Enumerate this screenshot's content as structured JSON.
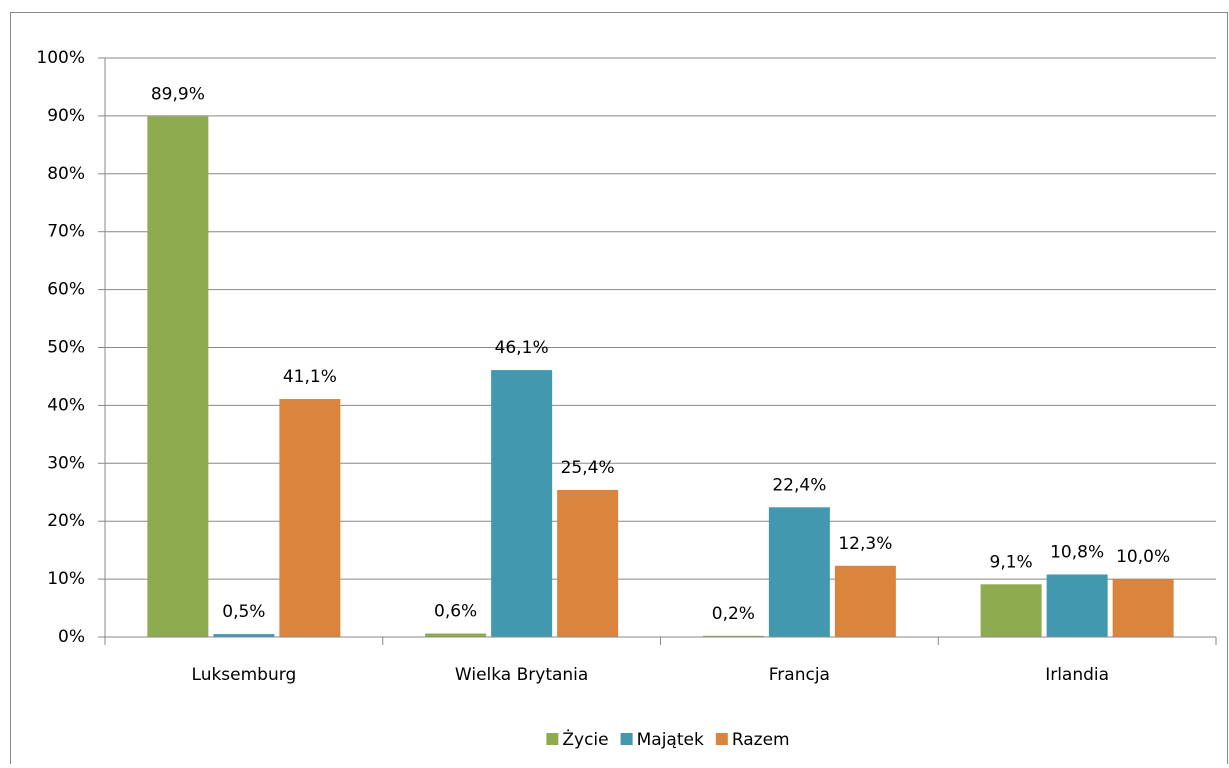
{
  "chart_data": {
    "type": "bar",
    "categories": [
      "Luksemburg",
      "Wielka Brytania",
      "Francja",
      "Irlandia"
    ],
    "series": [
      {
        "name": "Życie",
        "color": "#8eab4f",
        "values": [
          89.9,
          0.6,
          0.2,
          9.1
        ],
        "value_labels": [
          "89,9%",
          "0,6%",
          "0,2%",
          "9,1%"
        ]
      },
      {
        "name": "Majątek",
        "color": "#4198af",
        "values": [
          0.5,
          46.1,
          22.4,
          10.8
        ],
        "value_labels": [
          "0,5%",
          "46,1%",
          "22,4%",
          "10,8%"
        ]
      },
      {
        "name": "Razem",
        "color": "#db843d",
        "values": [
          41.1,
          25.4,
          12.3,
          10.0
        ],
        "value_labels": [
          "41,1%",
          "25,4%",
          "12,3%",
          "10,0%"
        ]
      }
    ],
    "ylim": [
      0,
      100
    ],
    "yticks": [
      {
        "value": 0,
        "label": "0%"
      },
      {
        "value": 10,
        "label": "10%"
      },
      {
        "value": 20,
        "label": "20%"
      },
      {
        "value": 30,
        "label": "30%"
      },
      {
        "value": 40,
        "label": "40%"
      },
      {
        "value": 50,
        "label": "50%"
      },
      {
        "value": 60,
        "label": "60%"
      },
      {
        "value": 70,
        "label": "70%"
      },
      {
        "value": 80,
        "label": "80%"
      },
      {
        "value": 90,
        "label": "90%"
      },
      {
        "value": 100,
        "label": "100%"
      }
    ],
    "grid": true,
    "legend": "bottom"
  }
}
